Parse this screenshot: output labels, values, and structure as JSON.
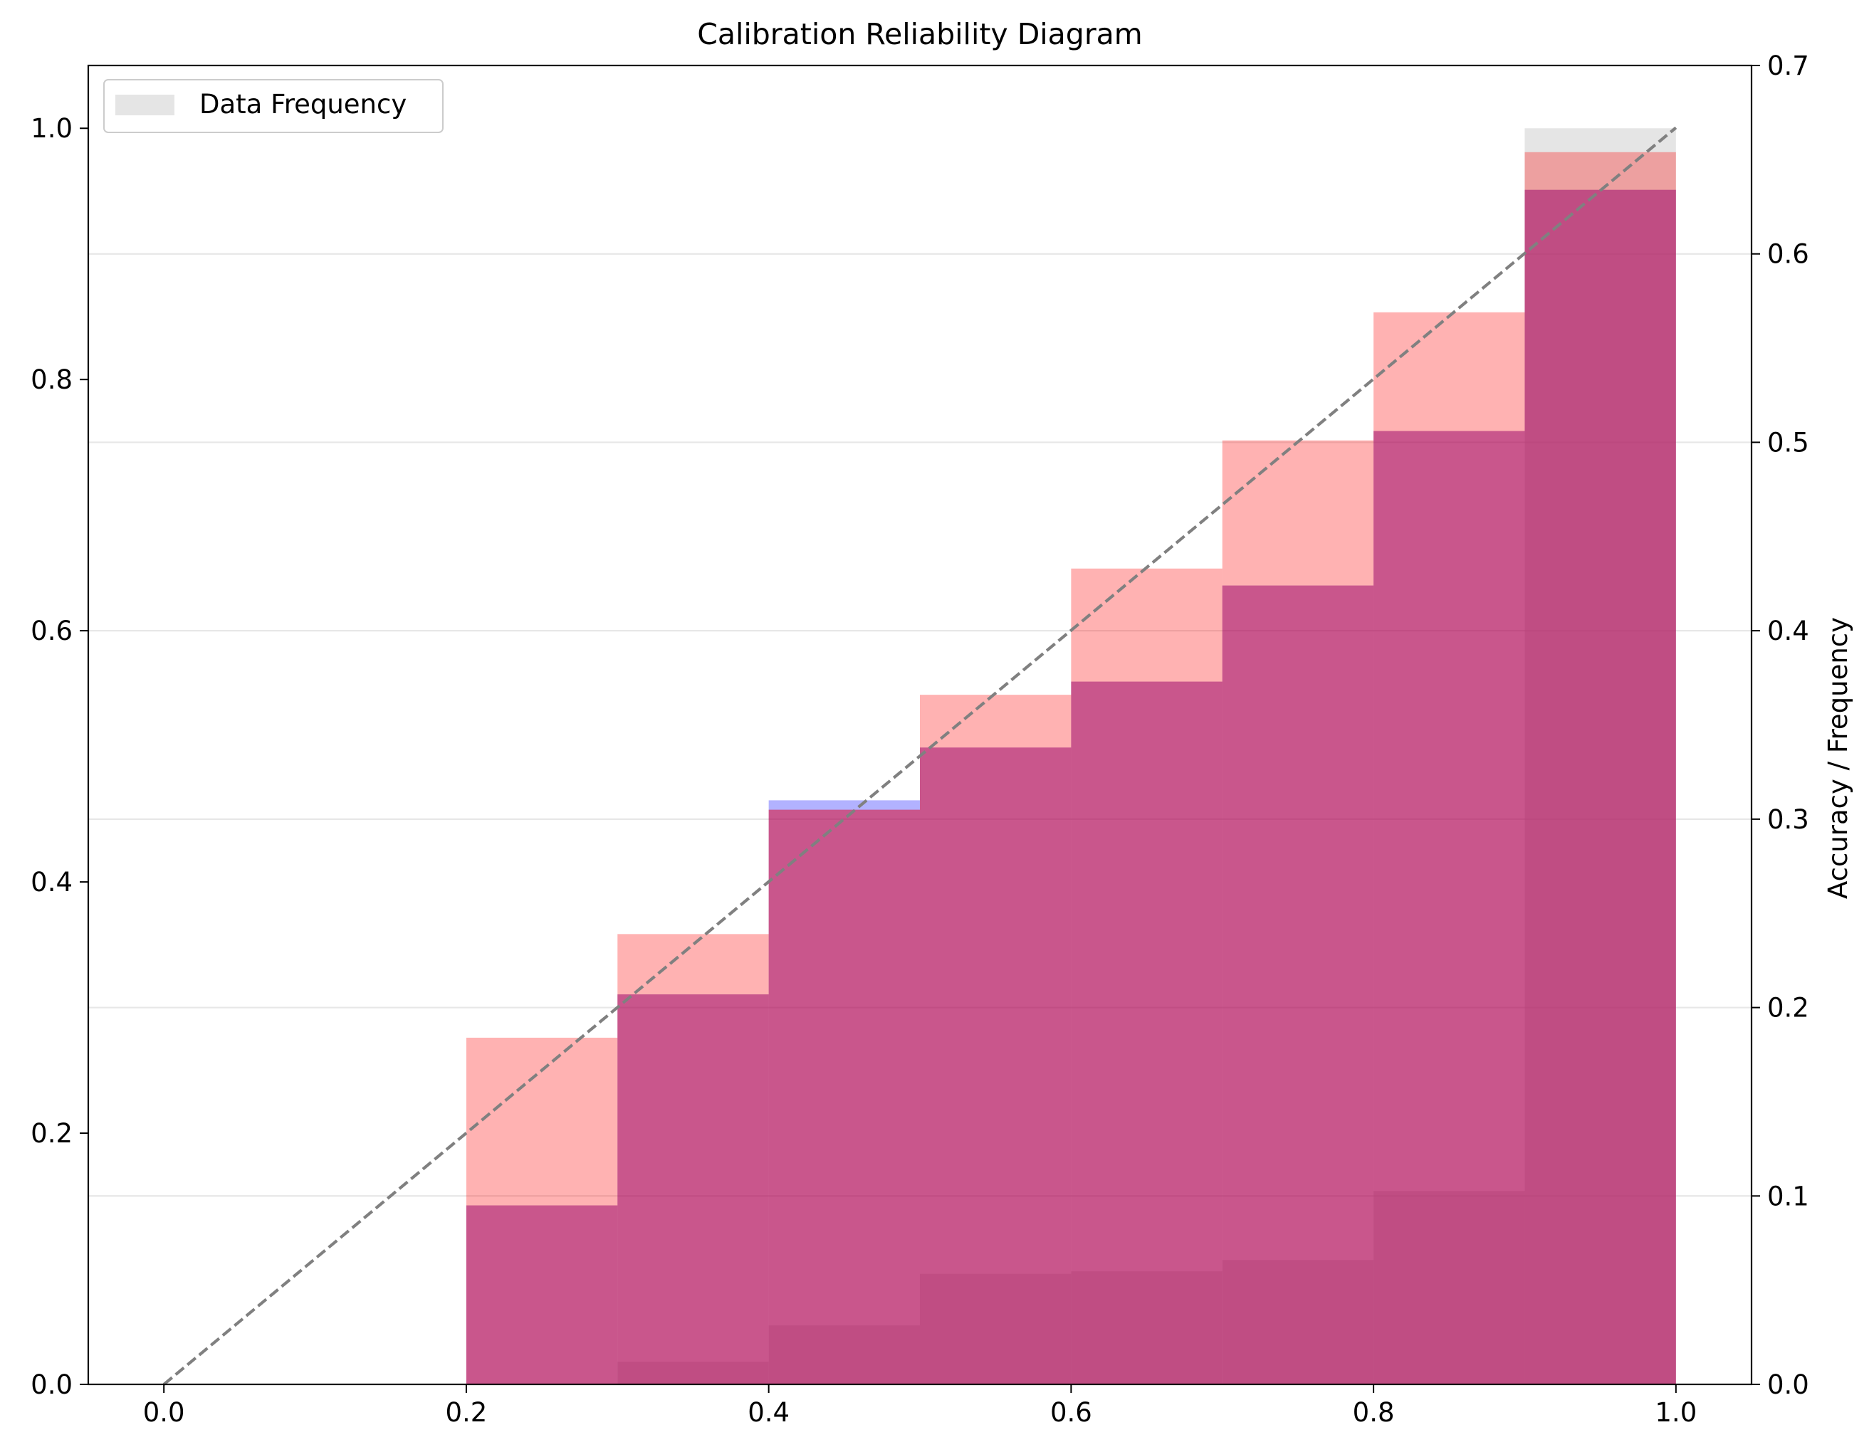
{
  "chart_data": {
    "type": "bar",
    "title": "Calibration Reliability Diagram",
    "xlabel": "",
    "ylabel_left": "",
    "ylabel_right": "Accuracy / Frequency",
    "xlim": [
      -0.05,
      1.05
    ],
    "ylim_left": [
      0,
      1.05
    ],
    "ylim_right": [
      0,
      0.7
    ],
    "x_ticks": [
      0.0,
      0.2,
      0.4,
      0.6,
      0.8,
      1.0
    ],
    "x_tick_labels": [
      "0.0",
      "0.2",
      "0.4",
      "0.6",
      "0.8",
      "1.0"
    ],
    "left_ticks": [
      0.0,
      0.2,
      0.4,
      0.6,
      0.8,
      1.0
    ],
    "left_tick_labels": [
      "0.0",
      "0.2",
      "0.4",
      "0.6",
      "0.8",
      "1.0"
    ],
    "right_ticks": [
      0.0,
      0.1,
      0.2,
      0.3,
      0.4,
      0.5,
      0.6,
      0.7
    ],
    "right_tick_labels": [
      "0.0",
      "0.1",
      "0.2",
      "0.3",
      "0.4",
      "0.5",
      "0.6",
      "0.7"
    ],
    "grid": "horizontal (right axis)",
    "legend_position": "top-left",
    "bins": [
      [
        0.2,
        0.3
      ],
      [
        0.3,
        0.4
      ],
      [
        0.4,
        0.5
      ],
      [
        0.5,
        0.6
      ],
      [
        0.6,
        0.7
      ],
      [
        0.7,
        0.8
      ],
      [
        0.8,
        0.9
      ],
      [
        0.9,
        1.0
      ]
    ],
    "series": [
      {
        "name": "Data Frequency",
        "axis": "left",
        "color": "#cccccc",
        "opacity": 0.5,
        "values": [
          0,
          0.018,
          0.047,
          0.088,
          0.09,
          0.099,
          0.154,
          1.0
        ]
      },
      {
        "axis": "right",
        "color": "#ff0000",
        "opacity": 0.3,
        "values": [
          0.184,
          0.239,
          0.305,
          0.366,
          0.433,
          0.501,
          0.569,
          0.654
        ]
      },
      {
        "axis": "right",
        "color": "#0000ff",
        "opacity": 0.3,
        "values": [
          0.095,
          0.207,
          0.31,
          0.338,
          0.373,
          0.424,
          0.506,
          0.634
        ]
      },
      {
        "axis": "right",
        "color": "#ff0000",
        "opacity": 0.3,
        "values": [
          0.095,
          0.207,
          0.305,
          0.338,
          0.373,
          0.424,
          0.506,
          0.634
        ]
      }
    ],
    "reference_line": {
      "style": "dashed",
      "color": "#808080",
      "axis": "right",
      "x": [
        0.0,
        1.0
      ],
      "y": [
        0.0,
        0.667
      ]
    }
  }
}
